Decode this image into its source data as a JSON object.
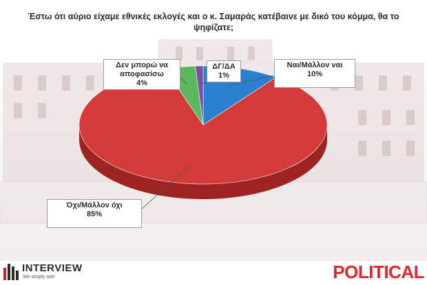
{
  "title": "Έστω ότι αύριο είχαμε εθνικές εκλογές και ο κ. Σαμαράς κατέβαινε με δικό του κόμμα, θα το ψηφίζατε;",
  "chart_data": {
    "type": "pie",
    "title": "Έστω ότι αύριο είχαμε εθνικές εκλογές και ο κ. Σαμαράς κατέβαινε με δικό του κόμμα, θα το ψηφίζατε;",
    "categories": [
      "Ναι/Μάλλον ναι",
      "Όχι/Μάλλον όχι",
      "Δεν μπορώ να αποφασίσω",
      "ΔΓ/ΔΑ"
    ],
    "values": [
      10,
      85,
      4,
      1
    ],
    "unit": "%",
    "value_labels": [
      "10%",
      "85%",
      "4%",
      "1%"
    ],
    "label_lines": [
      [
        "Ναι/Μάλλον ναι"
      ],
      [
        "Όχι/Μάλλον όχι"
      ],
      [
        "Δεν μπορώ να",
        "αποφασίσω"
      ],
      [
        "ΔΓ/ΔΑ"
      ]
    ],
    "colors": [
      "#2b7fcf",
      "#d33a3a",
      "#5cb85c",
      "#7b4fa0"
    ],
    "side_colors": [
      "#1c5a96",
      "#9e2424",
      "#3c8a3c",
      "#553575"
    ]
  },
  "branding": {
    "left_name": "INTERVIEW",
    "left_tagline": "We simply ask!",
    "right_name": "POLITICAL"
  }
}
